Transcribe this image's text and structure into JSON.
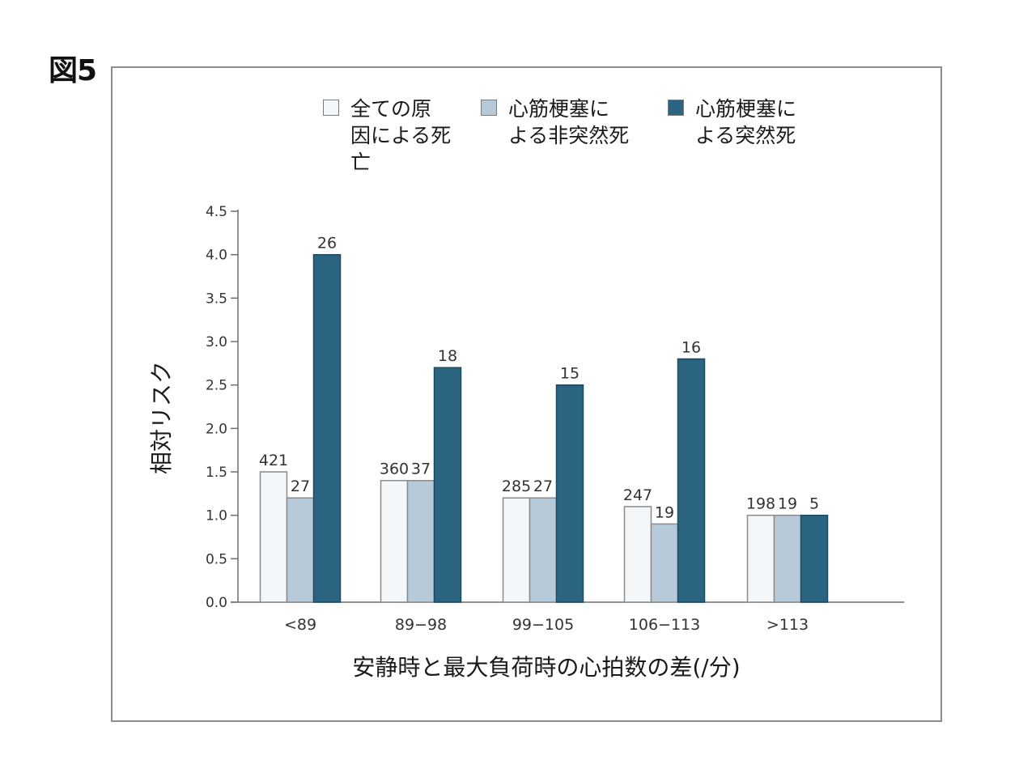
{
  "figure_label": "図5",
  "colors": {
    "all_cause": "#f4f7fa",
    "nonsudden": "#b7cad9",
    "sudden": "#2a6480",
    "axis": "#6e6e6e",
    "frame": "#8c8c8c"
  },
  "chart_data": {
    "type": "bar",
    "xlabel": "安静時と最大負荷時の心拍数の差(/分)",
    "ylabel": "相対リスク",
    "ylim": [
      0,
      4.5
    ],
    "yticks": [
      "0.0",
      "0.5",
      "1.0",
      "1.5",
      "2.0",
      "2.5",
      "3.0",
      "3.5",
      "4.0",
      "4.5"
    ],
    "categories": [
      "<89",
      "89−98",
      "99−105",
      "106−113",
      ">113"
    ],
    "series": [
      {
        "name": "全ての原\n因による死\n亡",
        "values": [
          1.5,
          1.4,
          1.2,
          1.1,
          1.0
        ],
        "labels": [
          "421",
          "360",
          "285",
          "247",
          "198"
        ]
      },
      {
        "name": "心筋梗塞に\nよる非突然死",
        "values": [
          1.2,
          1.4,
          1.2,
          0.9,
          1.0
        ],
        "labels": [
          "27",
          "37",
          "27",
          "19",
          "19"
        ]
      },
      {
        "name": "心筋梗塞に\nよる突然死",
        "values": [
          4.0,
          2.7,
          2.5,
          2.8,
          1.0
        ],
        "labels": [
          "26",
          "18",
          "15",
          "16",
          "5"
        ]
      }
    ],
    "legend_position": "top",
    "grid": false
  }
}
